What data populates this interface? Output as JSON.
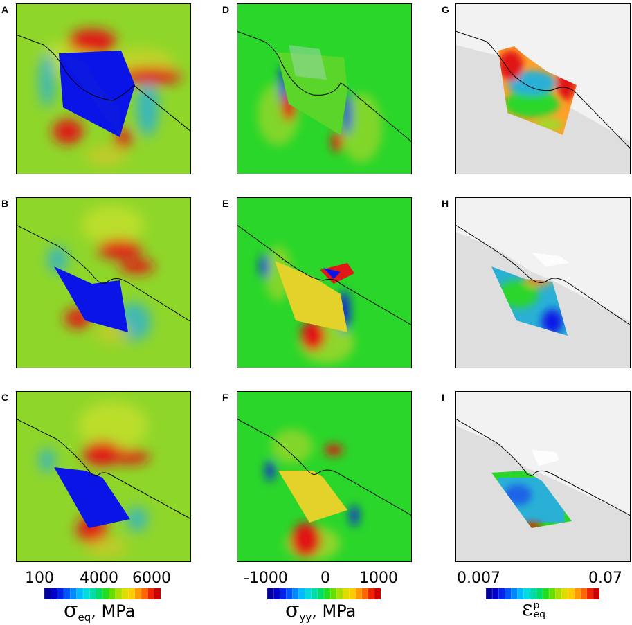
{
  "panels": [
    {
      "label": "A",
      "field": "seq",
      "stage": 0
    },
    {
      "label": "B",
      "field": "seq",
      "stage": 1
    },
    {
      "label": "C",
      "field": "seq",
      "stage": 2
    },
    {
      "label": "D",
      "field": "syy",
      "stage": 0
    },
    {
      "label": "E",
      "field": "syy",
      "stage": 1
    },
    {
      "label": "F",
      "field": "syy",
      "stage": 2
    },
    {
      "label": "G",
      "field": "eps",
      "stage": 0
    },
    {
      "label": "H",
      "field": "eps",
      "stage": 1
    },
    {
      "label": "I",
      "field": "eps",
      "stage": 2
    }
  ],
  "colorbars": {
    "seq": {
      "ticks": [
        "100",
        "4000",
        "6000"
      ],
      "symbol": "σ",
      "subscript": "eq",
      "unit": ", MPa"
    },
    "syy": {
      "ticks": [
        "-1000",
        "0",
        "1000"
      ],
      "symbol": "σ",
      "subscript": "yy",
      "unit": ", MPa"
    },
    "eps": {
      "ticks": [
        "0.007",
        "0.07"
      ],
      "symbol": "ε",
      "subscript": "eq",
      "superscript": "p"
    }
  },
  "colors": {
    "seq_background": "#8fd62a",
    "syy_background": "#2ad62a",
    "eps_background": "#dedede",
    "hot": "#e01818",
    "deep_blue": "#0a14e6",
    "yellow": "#e2d22a"
  }
}
